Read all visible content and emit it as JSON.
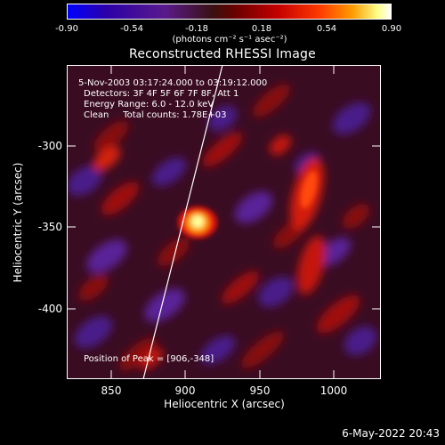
{
  "colorbar": {
    "ticks": [
      "-0.90",
      "-0.54",
      "-0.18",
      "0.18",
      "0.54",
      "0.90"
    ],
    "unit": "(photons cm⁻² s⁻¹ asec⁻²)"
  },
  "title": "Reconstructed RHESSI Image",
  "info": {
    "time_range": "5-Nov-2003 03:17:24.000 to 03:19:12.000",
    "detectors": "Detectors: 3F 4F 5F 6F 7F 8F, Att 1",
    "energy": "Energy Range: 6.0 - 12.0 keV",
    "clean": "Clean     Total counts: 1.78E+03",
    "peak": "Position of Peak = [906,-348]"
  },
  "axes": {
    "xlabel": "Heliocentric X (arcsec)",
    "ylabel": "Heliocentric Y (arcsec)",
    "xticks": [
      "850",
      "900",
      "950",
      "1000"
    ],
    "yticks": [
      "-300",
      "-350",
      "-400"
    ]
  },
  "timestamp": "6-May-2022 20:43"
}
